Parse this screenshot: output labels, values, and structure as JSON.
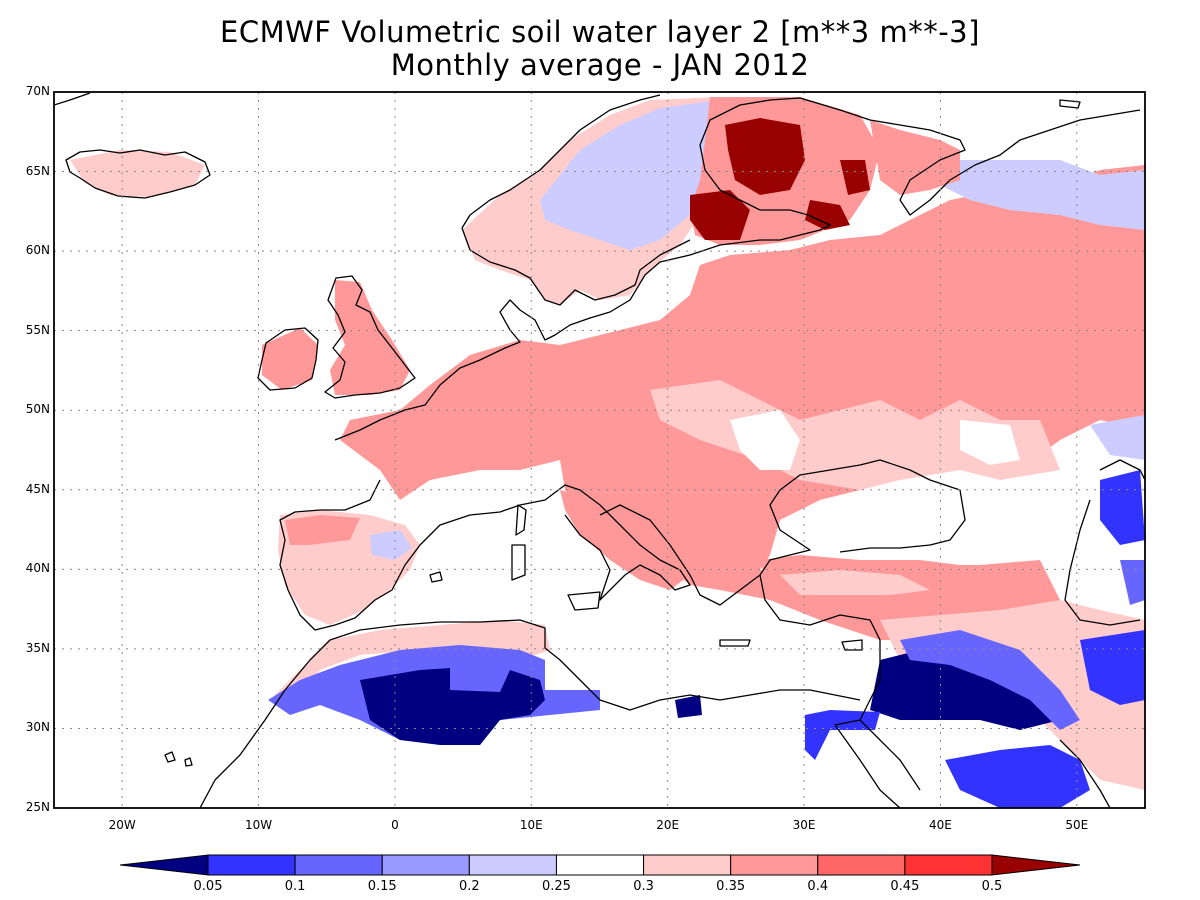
{
  "title": {
    "line1": "ECMWF Volumetric soil water layer 2 [m**3 m**-3]",
    "line2": "Monthly average - JAN 2012"
  },
  "map": {
    "lon_range": [
      -25,
      55
    ],
    "lat_range": [
      25,
      70
    ],
    "lat_ticks": [
      {
        "value": 70,
        "label": "70N"
      },
      {
        "value": 65,
        "label": "65N"
      },
      {
        "value": 60,
        "label": "60N"
      },
      {
        "value": 55,
        "label": "55N"
      },
      {
        "value": 50,
        "label": "50N"
      },
      {
        "value": 45,
        "label": "45N"
      },
      {
        "value": 40,
        "label": "40N"
      },
      {
        "value": 35,
        "label": "35N"
      },
      {
        "value": 30,
        "label": "30N"
      },
      {
        "value": 25,
        "label": "25N"
      }
    ],
    "lon_ticks": [
      {
        "value": -20,
        "label": "20W"
      },
      {
        "value": -10,
        "label": "10W"
      },
      {
        "value": 0,
        "label": "0"
      },
      {
        "value": 10,
        "label": "10E"
      },
      {
        "value": 20,
        "label": "20E"
      },
      {
        "value": 30,
        "label": "30E"
      },
      {
        "value": 40,
        "label": "40E"
      },
      {
        "value": 50,
        "label": "50E"
      }
    ],
    "grid": true
  },
  "colorbar": {
    "colors": [
      "#000080",
      "#3333ff",
      "#6666ff",
      "#9999ff",
      "#ccccff",
      "#ffffff",
      "#ffcccc",
      "#ff9999",
      "#ff6666",
      "#ff3333",
      "#990000"
    ],
    "labels": [
      "0.05",
      "0.1",
      "0.15",
      "0.2",
      "0.25",
      "0.3",
      "0.35",
      "0.4",
      "0.45",
      "0.5"
    ]
  }
}
